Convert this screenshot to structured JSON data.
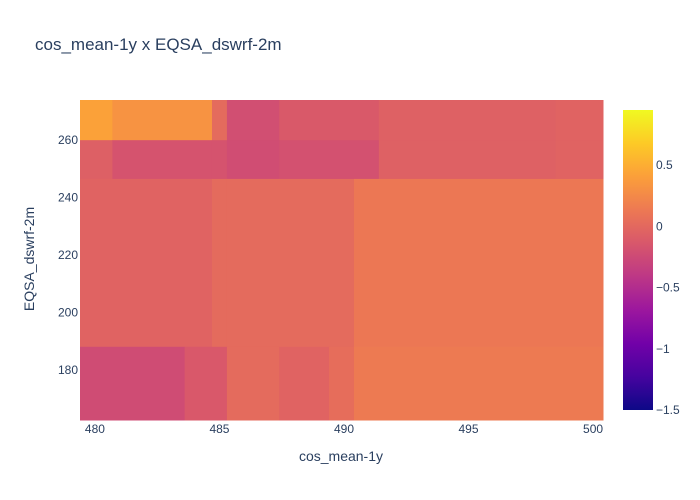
{
  "chart_data": {
    "type": "heatmap",
    "title": "cos_mean-1y x EQSA_dswrf-2m",
    "xlabel": "cos_mean-1y",
    "ylabel": "EQSA_dswrf-2m",
    "xlim": [
      479.4,
      500.4
    ],
    "ylim": [
      162.5,
      274.0
    ],
    "xticks": [
      480,
      485,
      490,
      495,
      500
    ],
    "yticks": [
      180,
      200,
      220,
      240,
      260
    ],
    "colorbar": {
      "range": [
        -1.5,
        0.95
      ],
      "ticks": [
        0.5,
        0,
        -0.5,
        -1,
        -1.5
      ],
      "tick_labels": [
        "0.5",
        "0",
        "−0.5",
        "−1",
        "−1.5"
      ],
      "colorscale": [
        "#0d0887",
        "#46039f",
        "#7201a8",
        "#9c179e",
        "#bd3786",
        "#d8576b",
        "#ed7953",
        "#fb9f3a",
        "#fdca26",
        "#f0f921"
      ]
    },
    "cells": [
      {
        "x0": 479.4,
        "x1": 480.7,
        "y0": 260,
        "y1": 274.0,
        "z": 0.42
      },
      {
        "x0": 480.7,
        "x1": 484.7,
        "y0": 260,
        "y1": 274.0,
        "z": 0.32
      },
      {
        "x0": 484.7,
        "x1": 485.3,
        "y0": 260,
        "y1": 274.0,
        "z": 0.02
      },
      {
        "x0": 485.3,
        "x1": 487.4,
        "y0": 260,
        "y1": 274.0,
        "z": -0.21
      },
      {
        "x0": 487.4,
        "x1": 491.4,
        "y0": 260,
        "y1": 274.0,
        "z": -0.12
      },
      {
        "x0": 491.4,
        "x1": 498.5,
        "y0": 260,
        "y1": 274.0,
        "z": -0.06
      },
      {
        "x0": 498.5,
        "x1": 500.4,
        "y0": 260,
        "y1": 274.0,
        "z": -0.04
      },
      {
        "x0": 479.4,
        "x1": 480.7,
        "y0": 246.5,
        "y1": 260,
        "z": -0.07
      },
      {
        "x0": 480.7,
        "x1": 484.7,
        "y0": 246.5,
        "y1": 260,
        "z": -0.17
      },
      {
        "x0": 484.7,
        "x1": 485.3,
        "y0": 246.5,
        "y1": 260,
        "z": -0.17
      },
      {
        "x0": 485.3,
        "x1": 487.4,
        "y0": 246.5,
        "y1": 260,
        "z": -0.22
      },
      {
        "x0": 487.4,
        "x1": 491.4,
        "y0": 246.5,
        "y1": 260,
        "z": -0.19
      },
      {
        "x0": 491.4,
        "x1": 498.5,
        "y0": 246.5,
        "y1": 260,
        "z": -0.06
      },
      {
        "x0": 498.5,
        "x1": 500.4,
        "y0": 246.5,
        "y1": 260,
        "z": -0.04
      },
      {
        "x0": 479.4,
        "x1": 484.7,
        "y0": 188,
        "y1": 246.5,
        "z": -0.04
      },
      {
        "x0": 484.7,
        "x1": 485.3,
        "y0": 188,
        "y1": 246.5,
        "z": 0.02
      },
      {
        "x0": 485.3,
        "x1": 490.4,
        "y0": 188,
        "y1": 246.5,
        "z": 0.02
      },
      {
        "x0": 490.4,
        "x1": 500.4,
        "y0": 188,
        "y1": 246.5,
        "z": 0.12
      },
      {
        "x0": 479.4,
        "x1": 483.6,
        "y0": 162.5,
        "y1": 188,
        "z": -0.23
      },
      {
        "x0": 483.6,
        "x1": 485.3,
        "y0": 162.5,
        "y1": 188,
        "z": -0.13
      },
      {
        "x0": 485.3,
        "x1": 487.4,
        "y0": 162.5,
        "y1": 188,
        "z": 0.02
      },
      {
        "x0": 487.4,
        "x1": 489.4,
        "y0": 162.5,
        "y1": 188,
        "z": -0.04
      },
      {
        "x0": 489.4,
        "x1": 490.4,
        "y0": 162.5,
        "y1": 188,
        "z": 0.04
      },
      {
        "x0": 490.4,
        "x1": 500.4,
        "y0": 162.5,
        "y1": 188,
        "z": 0.14
      }
    ]
  }
}
